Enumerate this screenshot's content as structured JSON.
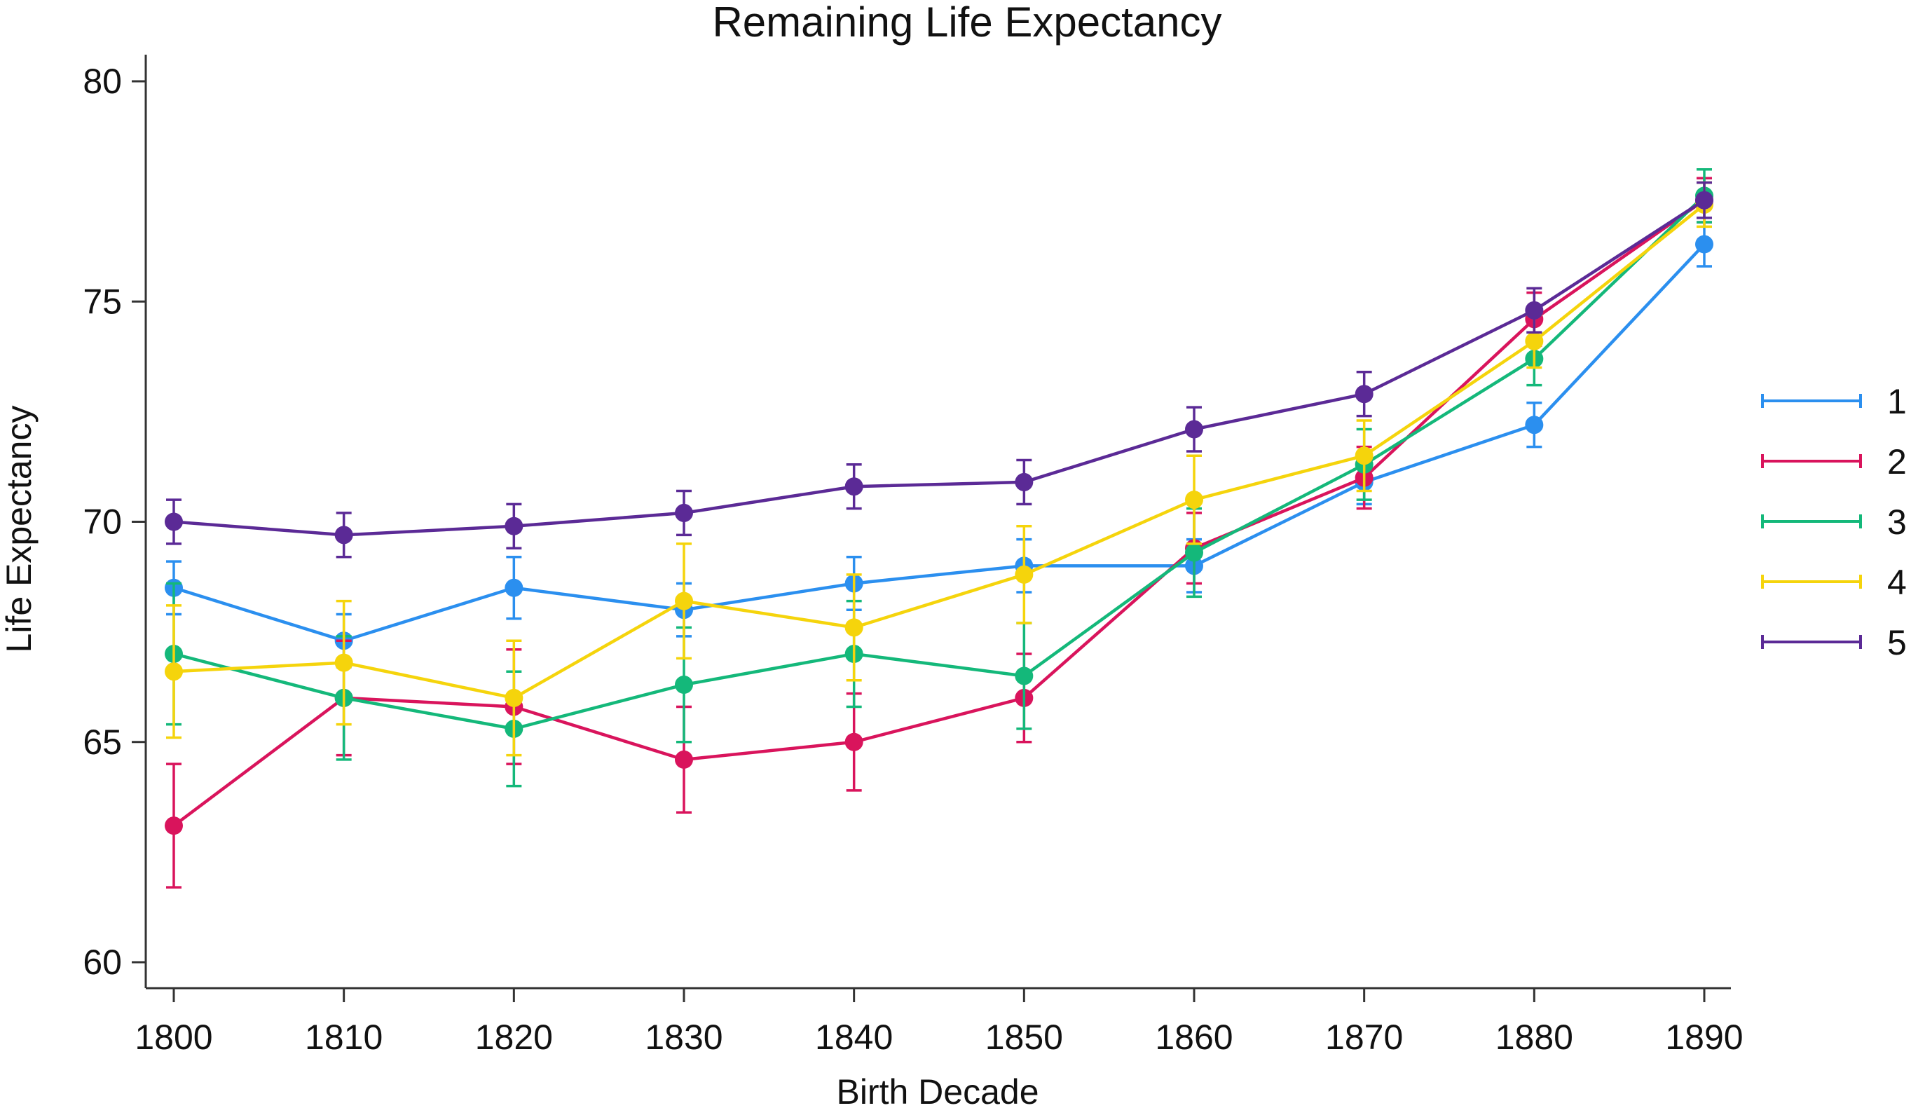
{
  "chart_data": {
    "type": "line",
    "title": "Remaining Life Expectancy",
    "xlabel": "Birth Decade",
    "ylabel": "Life Expectancy",
    "x": [
      1800,
      1810,
      1820,
      1830,
      1840,
      1850,
      1860,
      1870,
      1880,
      1890
    ],
    "xlim": [
      1800,
      1890
    ],
    "ylim": [
      60,
      80
    ],
    "y_ticks": [
      60,
      65,
      70,
      75,
      80
    ],
    "x_ticks": [
      1800,
      1810,
      1820,
      1830,
      1840,
      1850,
      1860,
      1870,
      1880,
      1890
    ],
    "grid": false,
    "legend_position": "right",
    "error_bars": true,
    "series": [
      {
        "name": "1",
        "color": "#2b8fef",
        "values": [
          68.5,
          67.3,
          68.5,
          68.0,
          68.6,
          69.0,
          69.0,
          70.9,
          72.2,
          76.3
        ],
        "errors": [
          0.6,
          0.6,
          0.7,
          0.6,
          0.6,
          0.6,
          0.6,
          0.5,
          0.5,
          0.5
        ]
      },
      {
        "name": "2",
        "color": "#d9145c",
        "values": [
          63.1,
          66.0,
          65.8,
          64.6,
          65.0,
          66.0,
          69.4,
          71.0,
          74.6,
          77.3
        ],
        "errors": [
          1.4,
          1.3,
          1.3,
          1.2,
          1.1,
          1.0,
          0.8,
          0.7,
          0.6,
          0.5
        ]
      },
      {
        "name": "3",
        "color": "#14b87a",
        "values": [
          67.0,
          66.0,
          65.3,
          66.3,
          67.0,
          66.5,
          69.3,
          71.3,
          73.7,
          77.4
        ],
        "errors": [
          1.6,
          1.4,
          1.3,
          1.3,
          1.2,
          1.2,
          1.0,
          0.8,
          0.6,
          0.6
        ]
      },
      {
        "name": "4",
        "color": "#f5d40c",
        "values": [
          66.6,
          66.8,
          66.0,
          68.2,
          67.6,
          68.8,
          70.5,
          71.5,
          74.1,
          77.2
        ],
        "errors": [
          1.5,
          1.4,
          1.3,
          1.3,
          1.2,
          1.1,
          1.0,
          0.8,
          0.6,
          0.5
        ]
      },
      {
        "name": "5",
        "color": "#5b2a96",
        "values": [
          70.0,
          69.7,
          69.9,
          70.2,
          70.8,
          70.9,
          72.1,
          72.9,
          74.8,
          77.3
        ],
        "errors": [
          0.5,
          0.5,
          0.5,
          0.5,
          0.5,
          0.5,
          0.5,
          0.5,
          0.5,
          0.4
        ]
      }
    ]
  }
}
